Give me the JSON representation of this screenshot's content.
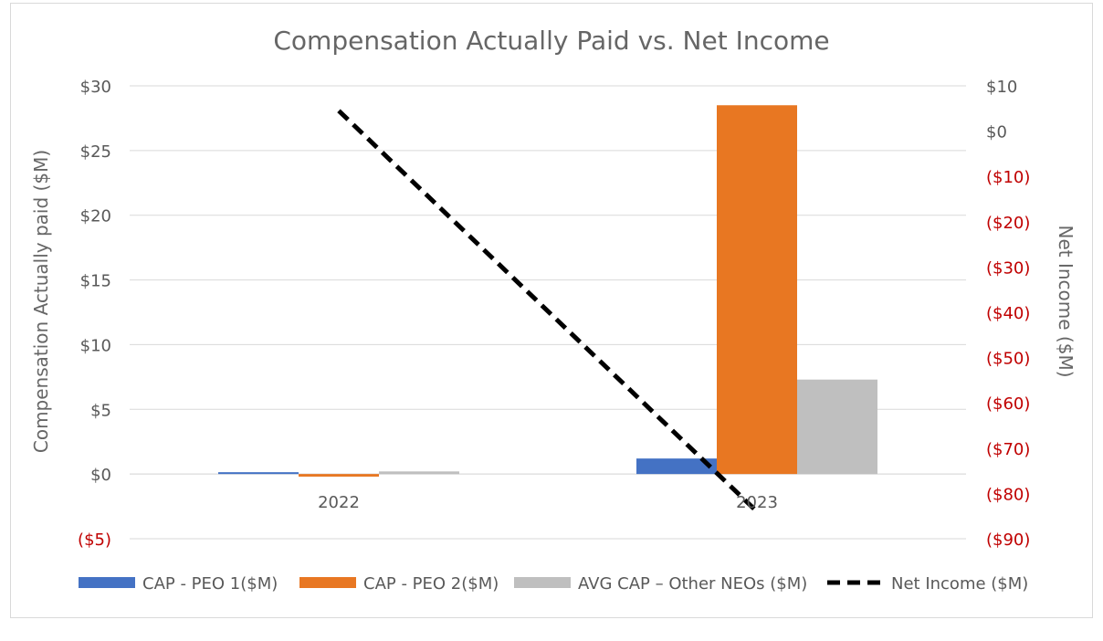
{
  "chart_data": {
    "type": "bar",
    "title": "Compensation Actually Paid vs. Net Income",
    "categories": [
      "2022",
      "2023"
    ],
    "ylabel": "Compensation Actually paid ($M)",
    "y2label": "Net Income ($M)",
    "ylim": [
      -5,
      30
    ],
    "y2lim": [
      -90,
      10
    ],
    "y_ticks": [
      {
        "value": 30,
        "label": "$30"
      },
      {
        "value": 25,
        "label": "$25"
      },
      {
        "value": 20,
        "label": "$20"
      },
      {
        "value": 15,
        "label": "$15"
      },
      {
        "value": 10,
        "label": "$10"
      },
      {
        "value": 5,
        "label": "$5"
      },
      {
        "value": 0,
        "label": "$0"
      },
      {
        "value": -5,
        "label": "($5)"
      }
    ],
    "y2_ticks": [
      {
        "value": 10,
        "label": "$10"
      },
      {
        "value": 0,
        "label": "$0"
      },
      {
        "value": -10,
        "label": "($10)"
      },
      {
        "value": -20,
        "label": "($20)"
      },
      {
        "value": -30,
        "label": "($30)"
      },
      {
        "value": -40,
        "label": "($40)"
      },
      {
        "value": -50,
        "label": "($50)"
      },
      {
        "value": -60,
        "label": "($60)"
      },
      {
        "value": -70,
        "label": "($70)"
      },
      {
        "value": -80,
        "label": "($80)"
      },
      {
        "value": -90,
        "label": "($90)"
      }
    ],
    "series": [
      {
        "name": "CAP - PEO 1($M)",
        "type": "bar",
        "axis": "left",
        "color": "#4472c4",
        "values": [
          0,
          1.2
        ]
      },
      {
        "name": "CAP - PEO 2($M)",
        "type": "bar",
        "axis": "left",
        "color": "#e87722",
        "values": [
          -0.2,
          28.5
        ]
      },
      {
        "name": "AVG CAP – Other NEOs ($M)",
        "type": "bar",
        "axis": "left",
        "color": "#bfbfbf",
        "values": [
          0.2,
          7.3
        ]
      },
      {
        "name": "Net Income ($M)",
        "type": "line",
        "axis": "right",
        "color": "#000000",
        "dash": true,
        "values": [
          4.5,
          -84
        ]
      }
    ],
    "legend_position": "bottom",
    "grid": true,
    "negative_label_color": "#c00000",
    "positive_label_color": "#595959"
  }
}
